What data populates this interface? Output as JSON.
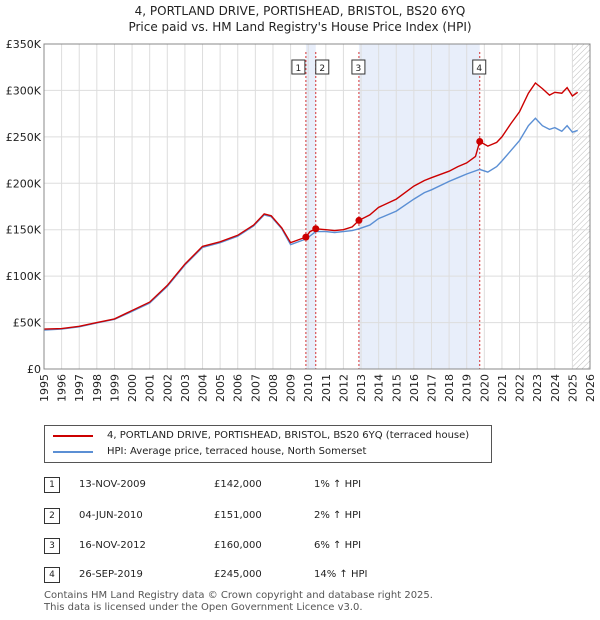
{
  "title": "4, PORTLAND DRIVE, PORTISHEAD, BRISTOL, BS20 6YQ",
  "subtitle": "Price paid vs. HM Land Registry's House Price Index (HPI)",
  "legend": {
    "property": "4, PORTLAND DRIVE, PORTISHEAD, BRISTOL, BS20 6YQ (terraced house)",
    "hpi": "HPI: Average price, terraced house, North Somerset"
  },
  "transactions": [
    {
      "num": "1",
      "date": "13-NOV-2009",
      "price": "£142,000",
      "hpi": "1% ↑ HPI"
    },
    {
      "num": "2",
      "date": "04-JUN-2010",
      "price": "£151,000",
      "hpi": "2% ↑ HPI"
    },
    {
      "num": "3",
      "date": "16-NOV-2012",
      "price": "£160,000",
      "hpi": "6% ↑ HPI"
    },
    {
      "num": "4",
      "date": "26-SEP-2019",
      "price": "£245,000",
      "hpi": "14% ↑ HPI"
    }
  ],
  "footer": {
    "line1": "Contains HM Land Registry data © Crown copyright and database right 2025.",
    "line2": "This data is licensed under the Open Government Licence v3.0."
  },
  "colors": {
    "property": "#cc0000",
    "hpi": "#5b8fd4",
    "shade": "#e8eefa",
    "grid": "#dddddd"
  },
  "chart_data": {
    "type": "line",
    "xlim": [
      1995,
      2026
    ],
    "ylim": [
      0,
      350000
    ],
    "yticks": [
      0,
      50000,
      100000,
      150000,
      200000,
      250000,
      300000,
      350000
    ],
    "ytick_labels": [
      "£0",
      "£50K",
      "£100K",
      "£150K",
      "£200K",
      "£250K",
      "£300K",
      "£350K"
    ],
    "xticks": [
      1995,
      1996,
      1997,
      1998,
      1999,
      2000,
      2001,
      2002,
      2003,
      2004,
      2005,
      2006,
      2007,
      2008,
      2009,
      2010,
      2011,
      2012,
      2013,
      2014,
      2015,
      2016,
      2017,
      2018,
      2019,
      2020,
      2021,
      2022,
      2023,
      2024,
      2025,
      2026
    ],
    "series": [
      {
        "name": "4, PORTLAND DRIVE, PORTISHEAD, BRISTOL, BS20 6YQ (terraced house)",
        "points": [
          [
            1995.0,
            43000
          ],
          [
            1996.0,
            43500
          ],
          [
            1997.0,
            46000
          ],
          [
            1998.0,
            50000
          ],
          [
            1999.0,
            54000
          ],
          [
            2000.0,
            63000
          ],
          [
            2001.0,
            72000
          ],
          [
            2002.0,
            90000
          ],
          [
            2003.0,
            113000
          ],
          [
            2004.0,
            132000
          ],
          [
            2005.0,
            137000
          ],
          [
            2006.0,
            144000
          ],
          [
            2006.9,
            155000
          ],
          [
            2007.5,
            167000
          ],
          [
            2007.9,
            165000
          ],
          [
            2008.5,
            152000
          ],
          [
            2009.0,
            136000
          ],
          [
            2009.87,
            142000
          ],
          [
            2010.1,
            148000
          ],
          [
            2010.43,
            151000
          ],
          [
            2011.0,
            150000
          ],
          [
            2011.5,
            149000
          ],
          [
            2012.0,
            150000
          ],
          [
            2012.5,
            153000
          ],
          [
            2012.88,
            160000
          ],
          [
            2013.5,
            166000
          ],
          [
            2014.0,
            174000
          ],
          [
            2015.0,
            183000
          ],
          [
            2016.0,
            197000
          ],
          [
            2016.6,
            203000
          ],
          [
            2017.0,
            206000
          ],
          [
            2018.0,
            213000
          ],
          [
            2018.5,
            218000
          ],
          [
            2019.0,
            222000
          ],
          [
            2019.5,
            229000
          ],
          [
            2019.74,
            245000
          ],
          [
            2020.2,
            240000
          ],
          [
            2020.7,
            244000
          ],
          [
            2021.0,
            250000
          ],
          [
            2021.5,
            264000
          ],
          [
            2022.0,
            277000
          ],
          [
            2022.5,
            297000
          ],
          [
            2022.9,
            308000
          ],
          [
            2023.3,
            302000
          ],
          [
            2023.7,
            295000
          ],
          [
            2024.0,
            298000
          ],
          [
            2024.4,
            297000
          ],
          [
            2024.7,
            303000
          ],
          [
            2025.0,
            294000
          ],
          [
            2025.3,
            298000
          ]
        ]
      },
      {
        "name": "HPI: Average price, terraced house, North Somerset",
        "points": [
          [
            1995.0,
            42000
          ],
          [
            1996.0,
            43000
          ],
          [
            1997.0,
            45500
          ],
          [
            1998.0,
            49500
          ],
          [
            1999.0,
            53500
          ],
          [
            2000.0,
            62000
          ],
          [
            2001.0,
            71000
          ],
          [
            2002.0,
            89000
          ],
          [
            2003.0,
            112000
          ],
          [
            2004.0,
            131000
          ],
          [
            2005.0,
            136000
          ],
          [
            2006.0,
            143000
          ],
          [
            2006.9,
            154000
          ],
          [
            2007.5,
            166000
          ],
          [
            2007.9,
            164000
          ],
          [
            2008.5,
            151000
          ],
          [
            2009.0,
            134000
          ],
          [
            2009.87,
            140000
          ],
          [
            2010.43,
            148000
          ],
          [
            2011.0,
            148000
          ],
          [
            2011.5,
            147000
          ],
          [
            2012.0,
            148000
          ],
          [
            2012.5,
            149000
          ],
          [
            2012.88,
            151000
          ],
          [
            2013.5,
            155000
          ],
          [
            2014.0,
            162000
          ],
          [
            2015.0,
            170000
          ],
          [
            2016.0,
            183000
          ],
          [
            2016.6,
            190000
          ],
          [
            2017.0,
            193000
          ],
          [
            2018.0,
            202000
          ],
          [
            2018.5,
            206000
          ],
          [
            2019.0,
            210000
          ],
          [
            2019.74,
            215000
          ],
          [
            2020.2,
            212000
          ],
          [
            2020.7,
            218000
          ],
          [
            2021.0,
            224000
          ],
          [
            2021.5,
            235000
          ],
          [
            2022.0,
            246000
          ],
          [
            2022.5,
            262000
          ],
          [
            2022.9,
            270000
          ],
          [
            2023.3,
            262000
          ],
          [
            2023.7,
            258000
          ],
          [
            2024.0,
            260000
          ],
          [
            2024.4,
            256000
          ],
          [
            2024.7,
            262000
          ],
          [
            2025.0,
            255000
          ],
          [
            2025.3,
            257000
          ]
        ]
      }
    ],
    "sales": [
      {
        "num": "1",
        "x": 2009.87,
        "y": 142000
      },
      {
        "num": "2",
        "x": 2010.43,
        "y": 151000
      },
      {
        "num": "3",
        "x": 2012.88,
        "y": 160000
      },
      {
        "num": "4",
        "x": 2019.74,
        "y": 245000
      }
    ],
    "shaded_ranges": [
      [
        2009.87,
        2010.43
      ],
      [
        2012.88,
        2019.74
      ]
    ],
    "hatched_from": 2025.0
  }
}
